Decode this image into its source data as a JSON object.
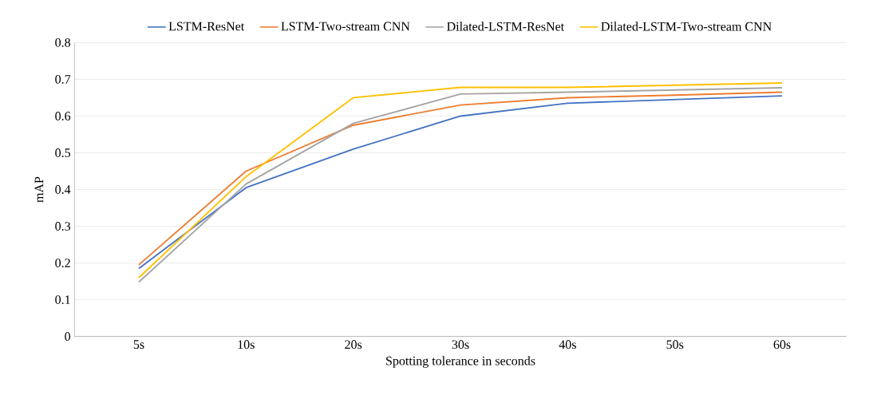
{
  "chart_data": {
    "type": "line",
    "xlabel": "Spotting tolerance in seconds",
    "ylabel": "mAP",
    "categories": [
      "5s",
      "10s",
      "20s",
      "30s",
      "40s",
      "50s",
      "60s"
    ],
    "series": [
      {
        "name": "LSTM-ResNet",
        "color": "#4472c4",
        "values": [
          0.185,
          0.405,
          0.51,
          0.6,
          0.635,
          0.645,
          0.655
        ]
      },
      {
        "name": "LSTM-Two-stream CNN",
        "color": "#ed7d31",
        "values": [
          0.195,
          0.45,
          0.575,
          0.63,
          0.65,
          0.657,
          0.665
        ]
      },
      {
        "name": "Dilated-LSTM-ResNet",
        "color": "#a5a5a5",
        "values": [
          0.148,
          0.415,
          0.58,
          0.66,
          0.665,
          0.671,
          0.677
        ]
      },
      {
        "name": "Dilated-LSTM-Two-stream CNN",
        "color": "#ffc000",
        "values": [
          0.16,
          0.435,
          0.65,
          0.678,
          0.678,
          0.684,
          0.69
        ]
      }
    ],
    "ylim": [
      0,
      0.8
    ],
    "yticks": [
      0,
      0.1,
      0.2,
      0.3,
      0.4,
      0.5,
      0.6,
      0.7,
      0.8
    ],
    "grid": "y",
    "legend": "top",
    "marker": "none",
    "line_style": "solid"
  }
}
